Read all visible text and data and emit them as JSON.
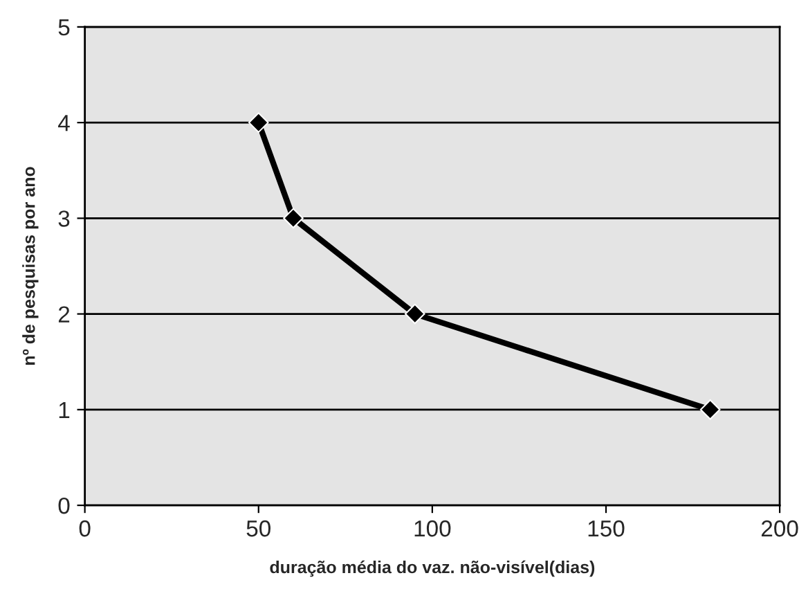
{
  "chart_data": {
    "type": "line",
    "xlabel": "duração média do vaz. não-visível(dias)",
    "ylabel": "nº de pesquisas por ano",
    "x": [
      50,
      60,
      95,
      180
    ],
    "series": [
      {
        "color": "#000000",
        "values": [
          4,
          3,
          2,
          1
        ]
      }
    ],
    "xlim": [
      0,
      200
    ],
    "xticks": [
      0,
      50,
      100,
      150,
      200
    ],
    "ylim": [
      0,
      5
    ],
    "yticks": [
      0,
      1,
      2,
      3,
      4,
      5
    ],
    "grid": "y",
    "marker": "diamond",
    "line_style": "solid",
    "legend": false
  }
}
